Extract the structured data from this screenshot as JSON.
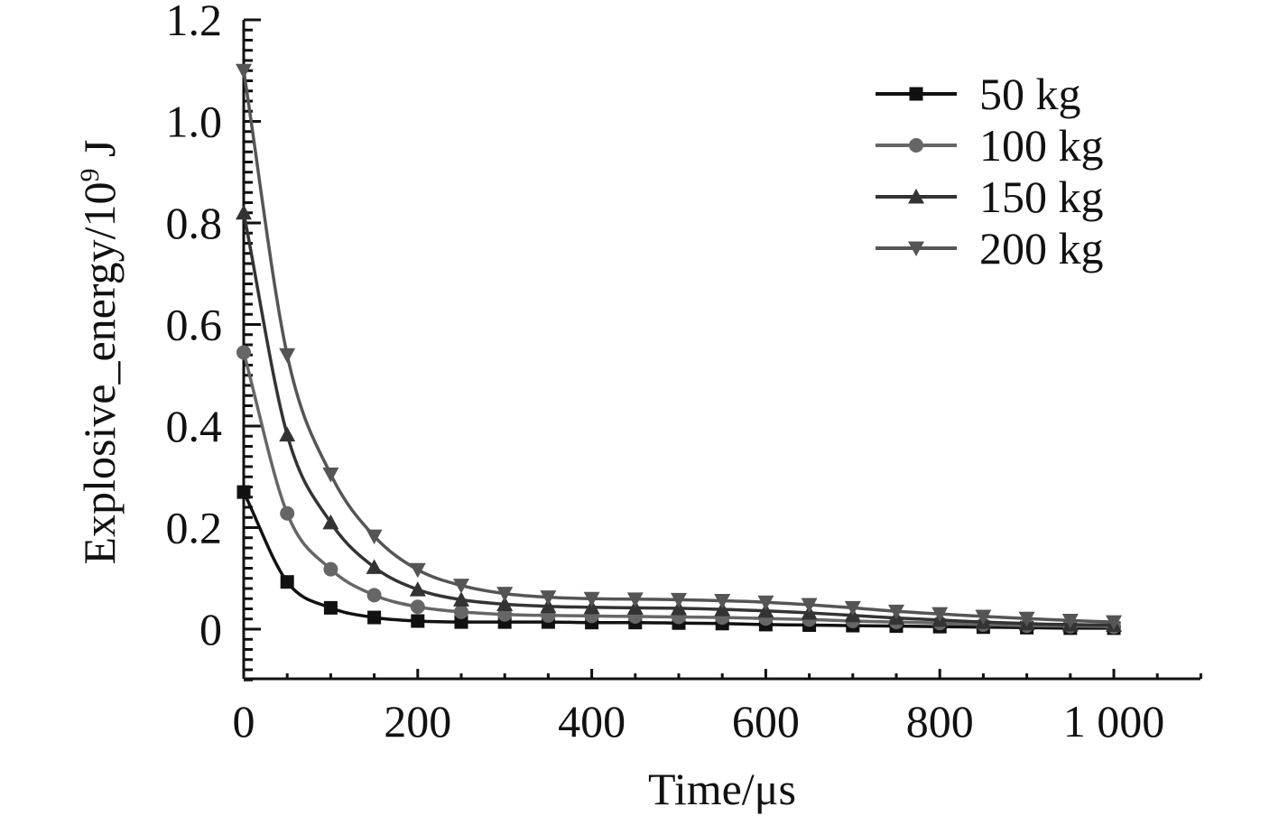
{
  "chart_data": {
    "type": "line",
    "title": "",
    "xlabel": "Time/μs",
    "ylabel_main": "Explosive_energy/10",
    "ylabel_exp": "9",
    "ylabel_unit": " J",
    "xlim": [
      0,
      1100
    ],
    "ylim": [
      -0.1,
      1.2
    ],
    "x_ticks": [
      0,
      200,
      400,
      600,
      800,
      1000
    ],
    "x_tick_labels": [
      "0",
      "200",
      "400",
      "600",
      "800",
      "1 000"
    ],
    "y_ticks": [
      0,
      0.2,
      0.4,
      0.6,
      0.8,
      1.0,
      1.2
    ],
    "y_tick_labels": [
      "0",
      "0.2",
      "0.4",
      "0.6",
      "0.8",
      "1.0",
      "1.2"
    ],
    "legend_position": "top-right",
    "x": [
      0,
      50,
      100,
      150,
      200,
      250,
      300,
      350,
      400,
      450,
      500,
      550,
      600,
      650,
      700,
      750,
      800,
      850,
      900,
      950,
      1000
    ],
    "series": [
      {
        "name": "50 kg",
        "marker": "square",
        "color": "#111111",
        "values": [
          0.27,
          0.093,
          0.042,
          0.023,
          0.016,
          0.014,
          0.014,
          0.014,
          0.013,
          0.013,
          0.012,
          0.011,
          0.009,
          0.008,
          0.007,
          0.006,
          0.005,
          0.004,
          0.003,
          0.002,
          0.002
        ]
      },
      {
        "name": "100 kg",
        "marker": "circle",
        "color": "#666666",
        "values": [
          0.545,
          0.228,
          0.118,
          0.067,
          0.044,
          0.034,
          0.029,
          0.027,
          0.026,
          0.025,
          0.024,
          0.023,
          0.021,
          0.019,
          0.016,
          0.014,
          0.012,
          0.009,
          0.007,
          0.006,
          0.005
        ]
      },
      {
        "name": "150 kg",
        "marker": "triangle-up",
        "color": "#333333",
        "values": [
          0.82,
          0.383,
          0.21,
          0.122,
          0.078,
          0.058,
          0.049,
          0.045,
          0.043,
          0.042,
          0.041,
          0.039,
          0.036,
          0.032,
          0.027,
          0.022,
          0.018,
          0.014,
          0.011,
          0.009,
          0.008
        ]
      },
      {
        "name": "200 kg",
        "marker": "triangle-down",
        "color": "#555555",
        "values": [
          1.1,
          0.54,
          0.305,
          0.183,
          0.117,
          0.086,
          0.07,
          0.063,
          0.06,
          0.059,
          0.058,
          0.056,
          0.053,
          0.048,
          0.042,
          0.035,
          0.03,
          0.025,
          0.021,
          0.017,
          0.014
        ]
      }
    ]
  }
}
